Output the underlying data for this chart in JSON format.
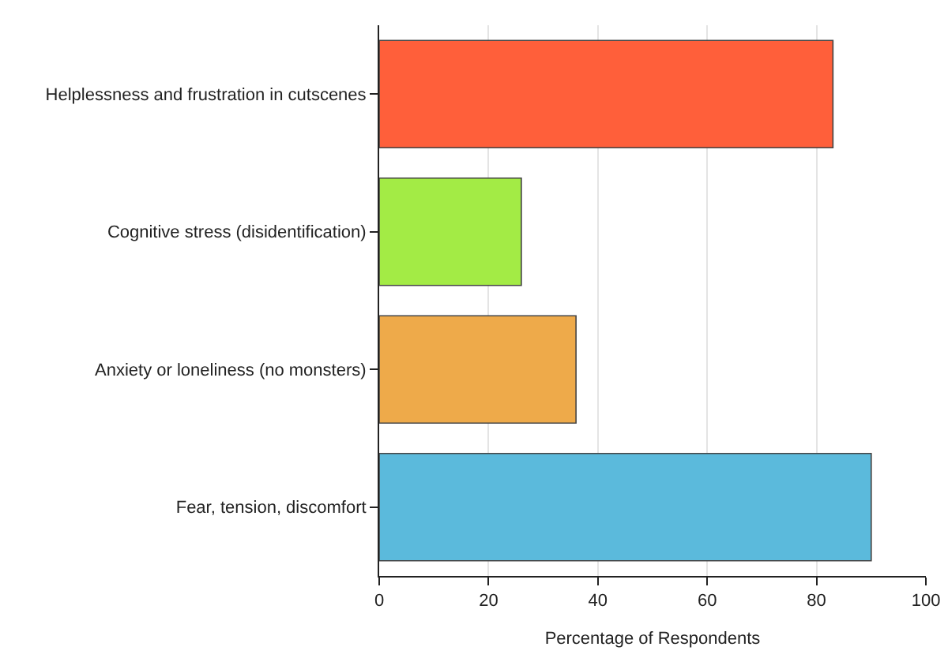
{
  "chart_data": {
    "type": "bar",
    "orientation": "horizontal",
    "xlabel": "Percentage of Respondents",
    "categories": [
      "Helplessness and frustration in cutscenes",
      "Cognitive stress (disidentification)",
      "Anxiety or loneliness (no monsters)",
      "Fear, tension, discomfort"
    ],
    "values": [
      83,
      26,
      36,
      90
    ],
    "colors": [
      "#ff5f3a",
      "#a3eb45",
      "#eeaa4a",
      "#5bbadc"
    ],
    "xlim": [
      0,
      100
    ],
    "xticks": [
      0,
      20,
      40,
      60,
      80,
      100
    ],
    "grid": "x"
  }
}
